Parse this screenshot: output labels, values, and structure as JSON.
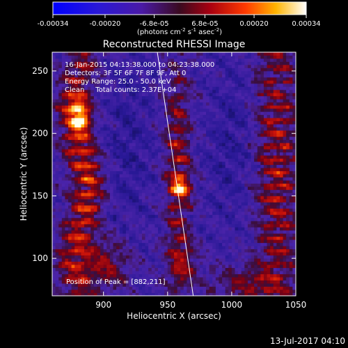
{
  "colorbar": {
    "ticks": [
      "-0.00034",
      "-0.00020",
      "-6.8e-05",
      "6.8e-05",
      "0.00020",
      "0.00034"
    ],
    "tick_values": [
      -0.00034,
      -0.0002,
      -6.8e-05,
      6.8e-05,
      0.0002,
      0.00034
    ],
    "range": [
      -0.00034,
      0.00034
    ],
    "unit_label_main": "(photons cm",
    "unit_sup1": "-2",
    "unit_mid": " s",
    "unit_sup2": "-1",
    "unit_tail": " asec",
    "unit_sup3": "-2",
    "unit_close": ")"
  },
  "chart_data": {
    "type": "heatmap",
    "title": "Reconstructed RHESSI Image",
    "xlabel": "Heliocentric X (arcsec)",
    "ylabel": "Heliocentric Y (arcsec)",
    "xlim": [
      860,
      1050
    ],
    "ylim": [
      70,
      265
    ],
    "x_ticks": [
      900,
      950,
      1000,
      1050
    ],
    "y_ticks": [
      100,
      150,
      200,
      250
    ],
    "x_tick_labels": [
      "900",
      "950",
      "1000",
      "1050"
    ],
    "y_tick_labels": [
      "100",
      "150",
      "200",
      "250"
    ],
    "colormap": "rhessi-hot (blue-purple-red-yellow-white)",
    "info_lines": [
      "16-Jan-2015 04:13:38.000 to 04:23:38.000",
      "Detectors: 3F 5F 6F 7F 8F 9F, Att 0",
      "Energy Range: 25.0 - 50.0 keV",
      "Clean     Total counts: 2.37E+04"
    ],
    "peak_label": "Position of Peak = [882,211]",
    "peak": [
      882,
      211
    ],
    "limb_line": [
      [
        942,
        265
      ],
      [
        970,
        70
      ]
    ]
  },
  "footer": {
    "date": "13-Jul-2017 04:10"
  }
}
